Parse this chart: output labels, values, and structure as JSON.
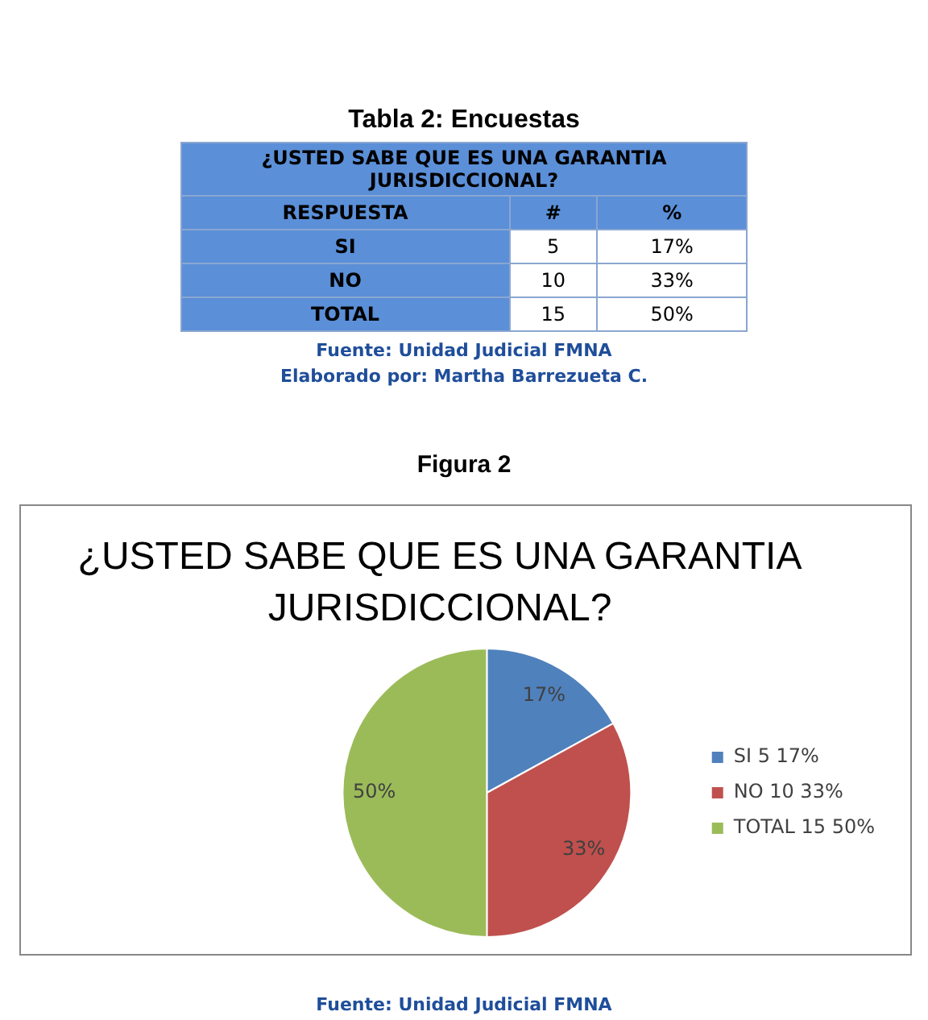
{
  "chart_data": [
    {
      "type": "other",
      "title": "Tabla 2: Encuestas",
      "annotations": [
        "¿USTED SABE QUE ES UNA GARANTIA JURISDICCIONAL?",
        "RESPUESTA",
        "#",
        "%",
        "SI",
        "5",
        "17%",
        "NO",
        "10",
        "33%",
        "TOTAL",
        "15",
        "50%",
        "Fuente: Unidad Judicial FMNA",
        "Elaborado por: Martha Barrezueta C."
      ]
    },
    {
      "type": "pie",
      "title": "¿USTED SABE QUE ES UNA GARANTIA JURISDICCIONAL?",
      "categories": [
        "SI 5 17%",
        "NO 10 33%",
        "TOTAL 15 50%"
      ],
      "values": [
        17,
        33,
        50
      ],
      "colors": [
        "#4f81bd",
        "#c0504d",
        "#9bbb59"
      ],
      "value_labels": [
        "17%",
        "33%",
        "50%"
      ],
      "legend": "right",
      "annotations": [
        "Figura 2",
        "Fuente: Unidad Judicial FMNA"
      ]
    }
  ]
}
